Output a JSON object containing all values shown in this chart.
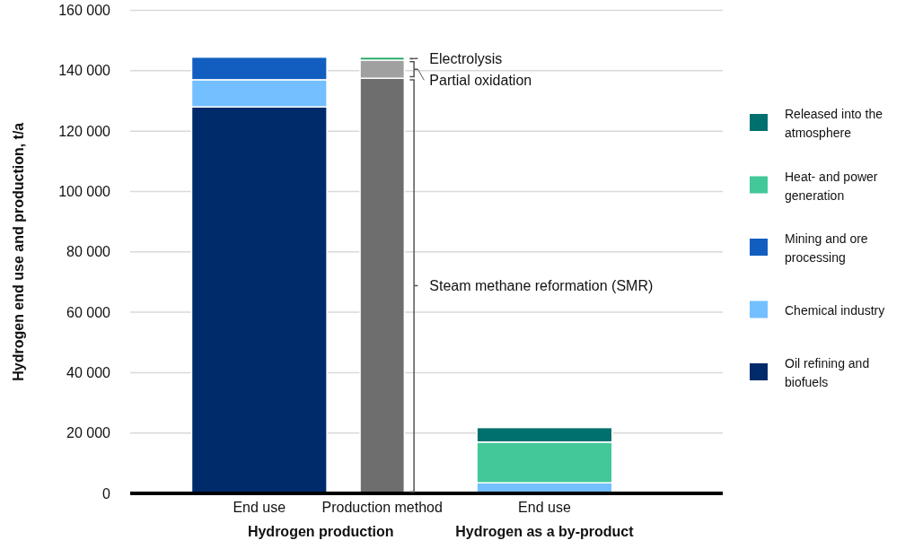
{
  "chart_data": {
    "type": "bar",
    "stacked": true,
    "ylabel": "Hydrogen end use and production, t/a",
    "categories": [
      "End use",
      "Production method",
      "End use"
    ],
    "annotations": [
      "Hydrogen production",
      "Hydrogen as a by-product"
    ],
    "series": [
      {
        "name": "Oil refining and biofuels",
        "color": "#002b6b",
        "values": [
          128000,
          null,
          null
        ]
      },
      {
        "name": "Chemical industry",
        "color": "#73bfff",
        "values": [
          9000,
          null,
          3500
        ]
      },
      {
        "name": "Mining and ore processing",
        "color": "#115ec0",
        "values": [
          7500,
          null,
          null
        ]
      },
      {
        "name": "Heat- and power generation",
        "color": "#43c89a",
        "values": [
          null,
          null,
          13500
        ]
      },
      {
        "name": "Released into the atmosphere",
        "color": "#00706e",
        "values": [
          null,
          null,
          4800
        ]
      },
      {
        "name": "Steam methane reformation (SMR)",
        "color": "#6e6e6e",
        "values": [
          null,
          137500,
          null
        ]
      },
      {
        "name": "Partial oxidation",
        "color": "#a0a0a0",
        "values": [
          null,
          6000,
          null
        ]
      },
      {
        "name": "Electrolysis",
        "color": "#1aa860",
        "values": [
          null,
          1000,
          null
        ]
      }
    ],
    "ylim": [
      0,
      160000
    ],
    "yticks": [
      0,
      {
        "value": 20000,
        "label": "20 000"
      },
      {
        "value": 40000,
        "label": "40 000"
      },
      {
        "value": 60000,
        "label": "60 000"
      },
      {
        "value": 80000,
        "label": "80 000"
      },
      {
        "value": 100000,
        "label": "100 000"
      },
      {
        "value": 120000,
        "label": "120 000"
      },
      {
        "value": 140000,
        "label": "140 000"
      },
      {
        "value": 160000,
        "label": "160 000"
      }
    ],
    "grid": "y",
    "legend": "right"
  }
}
